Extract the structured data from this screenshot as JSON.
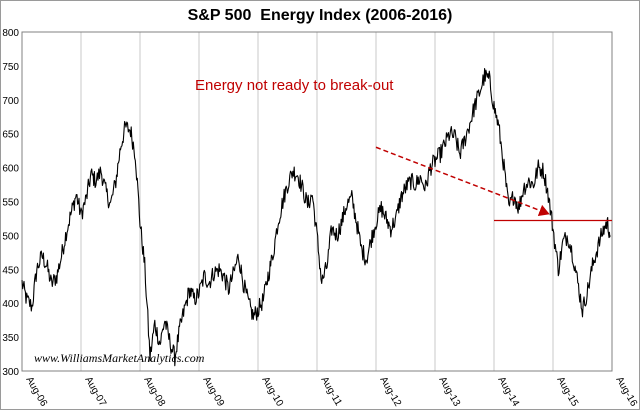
{
  "chart_data": {
    "type": "line",
    "title": "S&P 500  Energy Index (2006-2016)",
    "ylim": [
      300,
      800
    ],
    "y_ticks": [
      300,
      350,
      400,
      450,
      500,
      550,
      600,
      650,
      700,
      750,
      800
    ],
    "x_tick_labels": [
      "Aug-06",
      "Aug-07",
      "Aug-08",
      "Aug-09",
      "Aug-10",
      "Aug-11",
      "Aug-12",
      "Aug-13",
      "Aug-14",
      "Aug-15",
      "Aug-16"
    ],
    "xlim": [
      2006.58,
      2016.58
    ],
    "grid": "vertical",
    "annotations": [
      {
        "text": "Energy not ready to break-out",
        "color": "#c00000"
      },
      {
        "type": "dashed-arrow",
        "color": "#c00000",
        "from": [
          2012.58,
          630
        ],
        "to": [
          2015.5,
          532
        ]
      },
      {
        "type": "horizontal-line",
        "color": "#c00000",
        "x": [
          2014.58,
          2016.58
        ],
        "y": 522
      }
    ],
    "series": [
      {
        "color": "#000000",
        "points": [
          [
            2006.58,
            430
          ],
          [
            2006.66,
            405
          ],
          [
            2006.75,
            395
          ],
          [
            2006.83,
            450
          ],
          [
            2006.92,
            470
          ],
          [
            2007.0,
            455
          ],
          [
            2007.08,
            428
          ],
          [
            2007.17,
            440
          ],
          [
            2007.25,
            470
          ],
          [
            2007.33,
            505
          ],
          [
            2007.42,
            535
          ],
          [
            2007.5,
            560
          ],
          [
            2007.58,
            530
          ],
          [
            2007.67,
            555
          ],
          [
            2007.75,
            590
          ],
          [
            2007.83,
            580
          ],
          [
            2007.92,
            595
          ],
          [
            2008.0,
            565
          ],
          [
            2008.08,
            545
          ],
          [
            2008.17,
            580
          ],
          [
            2008.25,
            630
          ],
          [
            2008.33,
            660
          ],
          [
            2008.42,
            655
          ],
          [
            2008.5,
            620
          ],
          [
            2008.58,
            520
          ],
          [
            2008.66,
            455
          ],
          [
            2008.75,
            320
          ],
          [
            2008.83,
            370
          ],
          [
            2008.92,
            340
          ],
          [
            2009.0,
            375
          ],
          [
            2009.08,
            345
          ],
          [
            2009.17,
            320
          ],
          [
            2009.25,
            360
          ],
          [
            2009.33,
            390
          ],
          [
            2009.42,
            420
          ],
          [
            2009.5,
            405
          ],
          [
            2009.58,
            415
          ],
          [
            2009.67,
            440
          ],
          [
            2009.75,
            430
          ],
          [
            2009.83,
            445
          ],
          [
            2009.92,
            450
          ],
          [
            2010.0,
            440
          ],
          [
            2010.08,
            420
          ],
          [
            2010.17,
            445
          ],
          [
            2010.25,
            470
          ],
          [
            2010.33,
            430
          ],
          [
            2010.42,
            400
          ],
          [
            2010.5,
            380
          ],
          [
            2010.58,
            390
          ],
          [
            2010.67,
            405
          ],
          [
            2010.75,
            440
          ],
          [
            2010.83,
            470
          ],
          [
            2010.92,
            520
          ],
          [
            2011.0,
            550
          ],
          [
            2011.08,
            575
          ],
          [
            2011.17,
            595
          ],
          [
            2011.25,
            590
          ],
          [
            2011.33,
            570
          ],
          [
            2011.42,
            545
          ],
          [
            2011.5,
            560
          ],
          [
            2011.58,
            500
          ],
          [
            2011.66,
            430
          ],
          [
            2011.75,
            455
          ],
          [
            2011.83,
            510
          ],
          [
            2011.92,
            500
          ],
          [
            2012.0,
            520
          ],
          [
            2012.08,
            545
          ],
          [
            2012.17,
            555
          ],
          [
            2012.25,
            520
          ],
          [
            2012.33,
            480
          ],
          [
            2012.42,
            465
          ],
          [
            2012.5,
            495
          ],
          [
            2012.58,
            520
          ],
          [
            2012.67,
            540
          ],
          [
            2012.75,
            525
          ],
          [
            2012.83,
            510
          ],
          [
            2012.92,
            525
          ],
          [
            2013.0,
            555
          ],
          [
            2013.08,
            570
          ],
          [
            2013.17,
            580
          ],
          [
            2013.25,
            575
          ],
          [
            2013.33,
            585
          ],
          [
            2013.42,
            570
          ],
          [
            2013.5,
            600
          ],
          [
            2013.58,
            610
          ],
          [
            2013.67,
            620
          ],
          [
            2013.75,
            635
          ],
          [
            2013.83,
            650
          ],
          [
            2013.92,
            645
          ],
          [
            2014.0,
            620
          ],
          [
            2014.08,
            640
          ],
          [
            2014.17,
            665
          ],
          [
            2014.25,
            690
          ],
          [
            2014.33,
            710
          ],
          [
            2014.42,
            735
          ],
          [
            2014.5,
            730
          ],
          [
            2014.58,
            690
          ],
          [
            2014.66,
            660
          ],
          [
            2014.75,
            600
          ],
          [
            2014.83,
            540
          ],
          [
            2014.92,
            560
          ],
          [
            2015.0,
            540
          ],
          [
            2015.08,
            570
          ],
          [
            2015.17,
            580
          ],
          [
            2015.25,
            575
          ],
          [
            2015.33,
            600
          ],
          [
            2015.42,
            595
          ],
          [
            2015.5,
            560
          ],
          [
            2015.58,
            510
          ],
          [
            2015.67,
            450
          ],
          [
            2015.75,
            490
          ],
          [
            2015.83,
            500
          ],
          [
            2015.92,
            470
          ],
          [
            2016.0,
            430
          ],
          [
            2016.08,
            390
          ],
          [
            2016.17,
            420
          ],
          [
            2016.25,
            455
          ],
          [
            2016.33,
            480
          ],
          [
            2016.42,
            505
          ],
          [
            2016.5,
            520
          ],
          [
            2016.55,
            500
          ]
        ]
      }
    ]
  },
  "watermark": "www.WilliamsMarketAnalytics.com"
}
